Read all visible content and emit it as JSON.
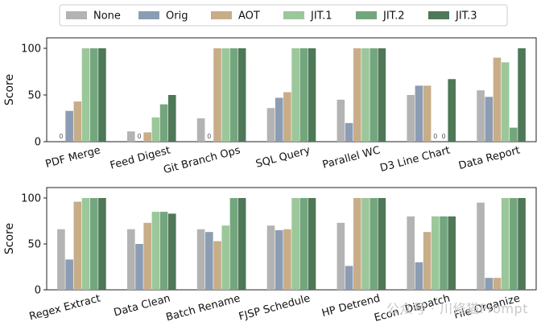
{
  "chart_data": {
    "type": "bar",
    "legend": {
      "placement": "top-center",
      "entries": [
        {
          "label": "None",
          "color": "#b3b3b3"
        },
        {
          "label": "Orig",
          "color": "#8c9db3"
        },
        {
          "label": "AOT",
          "color": "#c7ad88"
        },
        {
          "label": "JIT.1",
          "color": "#9bc79a"
        },
        {
          "label": "JIT.2",
          "color": "#74a67e"
        },
        {
          "label": "JIT.3",
          "color": "#4e7857"
        }
      ]
    },
    "panels": [
      {
        "ylabel": "Score",
        "ylim": [
          0,
          100
        ],
        "yticks": [
          "0",
          "50",
          "100"
        ],
        "categories": [
          "PDF Merge",
          "Feed Digest",
          "Git Branch Ops",
          "SQL Query",
          "Parallel WC",
          "D3 Line Chart",
          "Data Report"
        ],
        "series": [
          {
            "name": "None",
            "values": [
              0,
              11,
              25,
              36,
              45,
              50,
              55
            ]
          },
          {
            "name": "Orig",
            "values": [
              33,
              0,
              0,
              47,
              20,
              60,
              48
            ]
          },
          {
            "name": "AOT",
            "values": [
              43,
              10,
              100,
              53,
              100,
              60,
              90
            ]
          },
          {
            "name": "JIT.1",
            "values": [
              100,
              26,
              100,
              100,
              100,
              0,
              85
            ]
          },
          {
            "name": "JIT.2",
            "values": [
              100,
              40,
              100,
              100,
              100,
              0,
              15
            ]
          },
          {
            "name": "JIT.3",
            "values": [
              100,
              50,
              100,
              100,
              100,
              67,
              100
            ]
          }
        ],
        "zero_labels": [
          {
            "category": 0,
            "series": 0,
            "text": "0"
          },
          {
            "category": 1,
            "series": 1,
            "text": "0"
          },
          {
            "category": 2,
            "series": 1,
            "text": "0"
          },
          {
            "category": 5,
            "series": 3,
            "text": "0"
          },
          {
            "category": 5,
            "series": 4,
            "text": "0"
          }
        ]
      },
      {
        "ylabel": "Score",
        "ylim": [
          0,
          100
        ],
        "yticks": [
          "0",
          "50",
          "100"
        ],
        "categories": [
          "Regex Extract",
          "Data Clean",
          "Batch Rename",
          "FJSP Schedule",
          "HP Detrend",
          "Econ. Dispatch",
          "File Organize"
        ],
        "series": [
          {
            "name": "None",
            "values": [
              66,
              66,
              66,
              70,
              73,
              80,
              95
            ]
          },
          {
            "name": "Orig",
            "values": [
              33,
              50,
              63,
              65,
              26,
              30,
              13
            ]
          },
          {
            "name": "AOT",
            "values": [
              96,
              73,
              53,
              66,
              100,
              63,
              13
            ]
          },
          {
            "name": "JIT.1",
            "values": [
              100,
              85,
              70,
              100,
              100,
              80,
              100
            ]
          },
          {
            "name": "JIT.2",
            "values": [
              100,
              85,
              100,
              100,
              100,
              80,
              100
            ]
          },
          {
            "name": "JIT.3",
            "values": [
              100,
              83,
              100,
              100,
              100,
              80,
              100
            ]
          }
        ],
        "zero_labels": []
      }
    ]
  },
  "watermark": "公众号 · 川修猫Prompt"
}
